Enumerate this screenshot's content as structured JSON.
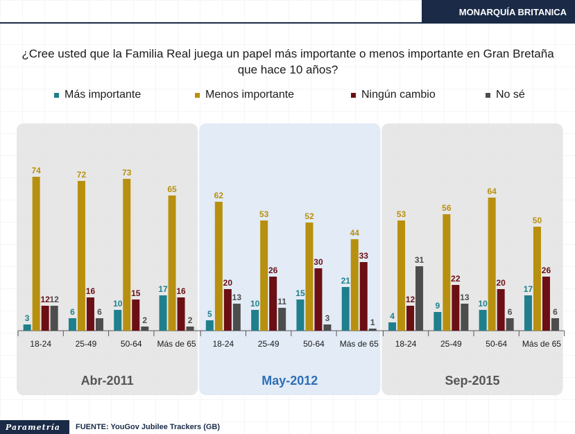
{
  "header": {
    "title": "MONARQUÍA BRITANICA"
  },
  "question": "¿Cree usted que la Familia Real juega un papel más importante o menos importante en Gran Bretaña que hace 10 años?",
  "legend": [
    {
      "label": "Más importante",
      "color": "#1f7f8c"
    },
    {
      "label": "Menos importante",
      "color": "#b8900f"
    },
    {
      "label": "Ningún cambio",
      "color": "#6b0f14"
    },
    {
      "label": "No sé",
      "color": "#4d4d4d"
    }
  ],
  "footer": {
    "logo": "Parametría",
    "source": "FUENTE: YouGov Jubilee Trackers (GB)"
  },
  "chart_data": {
    "type": "bar",
    "title": "¿Cree usted que la Familia Real juega un papel más importante o menos importante en Gran Bretaña que hace 10 años?",
    "ylim": [
      0,
      80
    ],
    "groups": [
      {
        "name": "Abr-2011",
        "color": "#555555",
        "panel": "#e3e3e3"
      },
      {
        "name": "May-2012",
        "color": "#2e6fb7",
        "panel": "#dde8f5"
      },
      {
        "name": "Sep-2015",
        "color": "#555555",
        "panel": "#e3e3e3"
      }
    ],
    "categories": [
      "18-24",
      "25-49",
      "50-64",
      "Más de 65",
      "18-24",
      "25-49",
      "50-64",
      "Más de 65",
      "18-24",
      "25-49",
      "50-64",
      "Más de 65"
    ],
    "series": [
      {
        "name": "Más importante",
        "color": "#1f7f8c",
        "label_color": "#1f7f8c",
        "values": [
          3,
          6,
          10,
          17,
          5,
          10,
          15,
          21,
          4,
          9,
          10,
          17
        ]
      },
      {
        "name": "Menos importante",
        "color": "#b8900f",
        "label_color": "#b8900f",
        "values": [
          74,
          72,
          73,
          65,
          62,
          53,
          52,
          44,
          53,
          56,
          64,
          50
        ]
      },
      {
        "name": "Ningún cambio",
        "color": "#6b0f14",
        "label_color": "#6b0f14",
        "values": [
          12,
          16,
          15,
          16,
          20,
          26,
          30,
          33,
          12,
          22,
          20,
          26
        ]
      },
      {
        "name": "No sé",
        "color": "#4d4d4d",
        "label_color": "#4d4d4d",
        "values": [
          12,
          6,
          2,
          2,
          13,
          11,
          3,
          1,
          31,
          13,
          6,
          6
        ]
      }
    ]
  }
}
